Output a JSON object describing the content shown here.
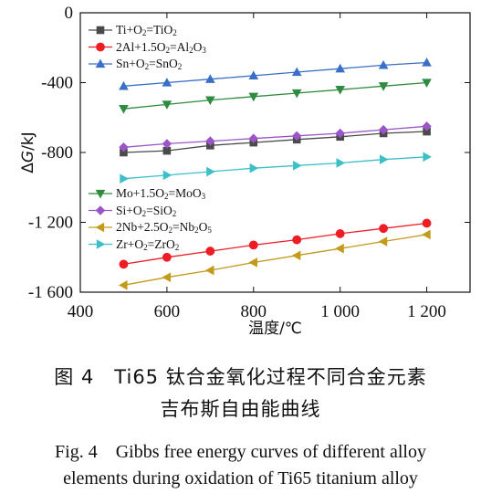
{
  "chart_data": {
    "type": "line",
    "xlabel": "温度/℃",
    "ylabel": "ΔG/kJ",
    "xlim": [
      400,
      1300
    ],
    "ylim": [
      -1600,
      0
    ],
    "xticks": [
      400,
      600,
      800,
      1000,
      1200
    ],
    "xtick_labels": [
      "400",
      "600",
      "800",
      "1 000",
      "1 200"
    ],
    "yticks": [
      0,
      -400,
      -800,
      -1200,
      -1600
    ],
    "ytick_labels": [
      "0",
      "-400",
      "-800",
      "-1 200",
      "-1 600"
    ],
    "grid": false,
    "legend_placement": [
      "upper-left",
      "lower-left"
    ],
    "x": [
      500,
      600,
      700,
      800,
      900,
      1000,
      1100,
      1200
    ],
    "series": [
      {
        "name": "Ti+O2=TiO2",
        "label_html": "Ti+O<sub>2</sub>=TiO<sub>2</sub>",
        "legend_group": 0,
        "color": "#4a4a4a",
        "marker": "square",
        "values": [
          -800,
          -790,
          -760,
          -743,
          -726,
          -710,
          -690,
          -680
        ]
      },
      {
        "name": "2Al+1.5O2=Al2O3",
        "label_html": "2Al+1.5O<sub>2</sub>=Al<sub>2</sub>O<sub>3</sub>",
        "legend_group": 0,
        "color": "#ee1c25",
        "marker": "circle",
        "values": [
          -1440,
          -1400,
          -1365,
          -1330,
          -1300,
          -1265,
          -1235,
          -1205
        ]
      },
      {
        "name": "Sn+O2=SnO2",
        "label_html": "Sn+O<sub>2</sub>=SnO<sub>2</sub>",
        "legend_group": 0,
        "color": "#3a6fc8",
        "marker": "triangle-up",
        "values": [
          -420,
          -400,
          -380,
          -360,
          -340,
          -320,
          -300,
          -285
        ]
      },
      {
        "name": "Mo+1.5O2=MoO3",
        "label_html": "Mo+1.5O<sub>2</sub>=MoO<sub>3</sub>",
        "legend_group": 1,
        "color": "#2e8b40",
        "marker": "triangle-down",
        "values": [
          -550,
          -525,
          -500,
          -480,
          -460,
          -440,
          -420,
          -400
        ]
      },
      {
        "name": "Si+O2=SiO2",
        "label_html": "Si+O<sub>2</sub>=SiO<sub>2</sub>",
        "legend_group": 1,
        "color": "#9b55c8",
        "marker": "diamond",
        "values": [
          -770,
          -750,
          -735,
          -720,
          -705,
          -690,
          -670,
          -650
        ]
      },
      {
        "name": "2Nb+2.5O2=Nb2O5",
        "label_html": "2Nb+2.5O<sub>2</sub>=Nb<sub>2</sub>O<sub>5</sub>",
        "legend_group": 1,
        "color": "#c39a1a",
        "marker": "triangle-left",
        "values": [
          -1560,
          -1515,
          -1475,
          -1430,
          -1390,
          -1350,
          -1310,
          -1270
        ]
      },
      {
        "name": "Zr+O2=ZrO2",
        "label_html": "Zr+O<sub>2</sub>=ZrO<sub>2</sub>",
        "legend_group": 1,
        "color": "#3dbfc8",
        "marker": "triangle-right",
        "values": [
          -950,
          -930,
          -910,
          -890,
          -875,
          -860,
          -840,
          -825
        ]
      }
    ]
  },
  "caption": {
    "cn_line1": "图 4　Ti65 钛合金氧化过程不同合金元素",
    "cn_line2": "吉布斯自由能曲线",
    "en_line1": "Fig. 4　Gibbs free energy curves of different alloy",
    "en_line2": "elements during oxidation of Ti65 titanium alloy"
  }
}
